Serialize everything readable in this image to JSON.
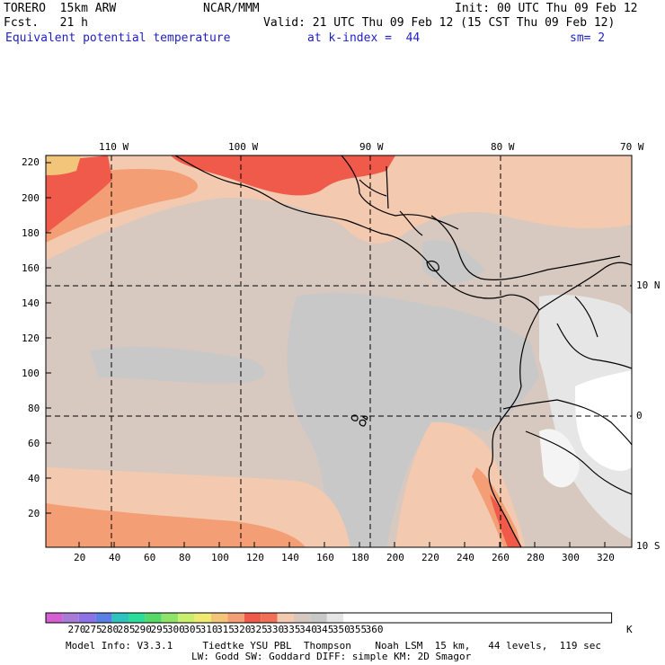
{
  "header": {
    "model": "TORERO  15km ARW",
    "forecast": "Fcst.   21 h",
    "center": "NCAR/MMM",
    "init": "Init: 00 UTC Thu 09 Feb 12",
    "valid": "Valid: 21 UTC Thu 09 Feb 12 (15 CST Thu 09 Feb 12)",
    "field": "Equivalent potential temperature",
    "level": "at k-index =  44",
    "smoothing": "sm= 2"
  },
  "map": {
    "top_lon_labels": [
      "110 W",
      "100 W",
      "90 W",
      "80 W",
      "70 W"
    ],
    "right_lat_labels": [
      "10 N",
      "0",
      "10 S"
    ],
    "x_grid_labels": [
      "20",
      "40",
      "60",
      "80",
      "100",
      "120",
      "140",
      "160",
      "180",
      "200",
      "220",
      "240",
      "260",
      "280",
      "300",
      "320"
    ],
    "y_grid_labels": [
      "220",
      "200",
      "180",
      "160",
      "140",
      "120",
      "100",
      "80",
      "60",
      "40",
      "20"
    ]
  },
  "colorbar": {
    "unit": "K",
    "labels": [
      "270",
      "275",
      "280",
      "285",
      "290",
      "295",
      "300",
      "305",
      "310",
      "315",
      "320",
      "325",
      "330",
      "335",
      "340",
      "345",
      "350",
      "355",
      "360"
    ],
    "colors": [
      "#d35fd0",
      "#a77bd6",
      "#8d72e6",
      "#5b7fe5",
      "#2fc3c0",
      "#2bdc9a",
      "#57d96a",
      "#8fe36a",
      "#c9ef6f",
      "#f0ea73",
      "#f3c57a",
      "#f39e74",
      "#ef5a4a",
      "#f07055",
      "#f3c9b0",
      "#d7c9bf",
      "#c8c8c8",
      "#e6e6e6",
      "#ffffff"
    ]
  },
  "footer": {
    "line1": "Model Info: V3.3.1     Tiedtke YSU PBL  Thompson    Noah LSM  15 km,   44 levels,  119 sec",
    "line2": "LW: Godd SW: Goddard DIFF: simple KM: 2D Smagor"
  }
}
